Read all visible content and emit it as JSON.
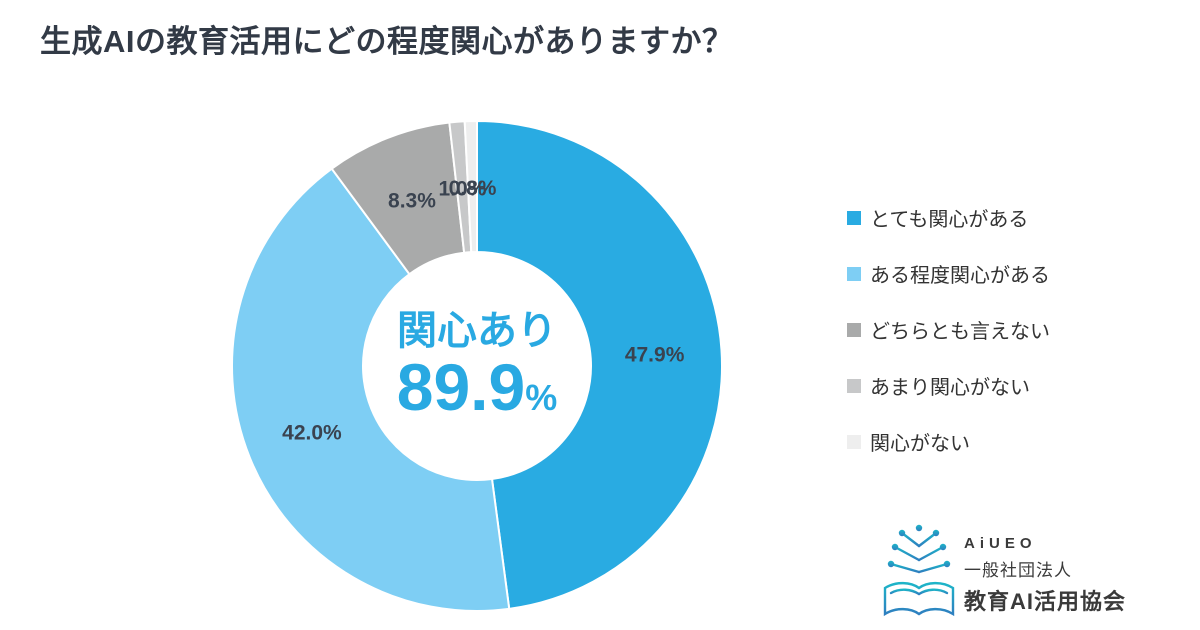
{
  "page": {
    "title": "生成AIの教育活用にどの程度関心がありますか？"
  },
  "chart_data": {
    "type": "pie",
    "subtype": "donut",
    "title": "生成AIの教育活用にどの程度関心がありますか？",
    "start_angle_deg": 0,
    "direction": "clockwise",
    "categories": [
      "とても関心がある",
      "ある程度関心がある",
      "どちらとも言えない",
      "あまり関心がない",
      "関心がない"
    ],
    "values": [
      47.9,
      42.0,
      8.3,
      1.0,
      0.8
    ],
    "labels": [
      "47.9%",
      "42.0%",
      "8.3%",
      "1.0%",
      "0.8%"
    ],
    "colors": [
      "#29abe2",
      "#7ecef4",
      "#a9aaaa",
      "#c7c8c9",
      "#eeeeee"
    ],
    "legend_position": "right",
    "center_label": {
      "line1": "関心あり",
      "value": "89.9",
      "unit": "%"
    }
  },
  "legend": {
    "items": [
      {
        "label": "とても関心がある"
      },
      {
        "label": "ある程度関心がある"
      },
      {
        "label": "どちらとも言えない"
      },
      {
        "label": "あまり関心がない"
      },
      {
        "label": "関心がない"
      }
    ]
  },
  "footer_logo": {
    "brand": "AiUEO",
    "line1": "一般社団法人",
    "line2": "教育AI活用協会"
  },
  "colors": {
    "title_text": "#323a46",
    "label_text": "#3a4350",
    "center_text": "#29a9e2",
    "logo_accent_top": "#1db5c8",
    "logo_accent_bottom": "#2e7fc0"
  }
}
